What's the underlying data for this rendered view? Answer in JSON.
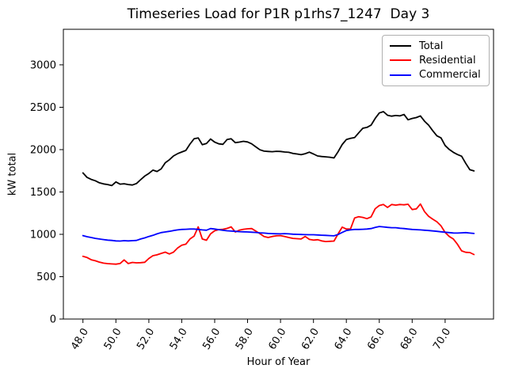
{
  "figure": {
    "background": "#ffffff",
    "frame_color": "#000000"
  },
  "chart_data": {
    "type": "line",
    "title": "Timeseries Load for P1R p1rhs7_1247  Day 3",
    "xlabel": "Hour of Year",
    "ylabel": "kW total",
    "grid": false,
    "legend_position": "upper right",
    "xlim": [
      46.81,
      72.94
    ],
    "ylim": [
      0,
      3420
    ],
    "xticks": [
      48,
      50,
      52,
      54,
      56,
      58,
      60,
      62,
      64,
      66,
      68,
      70
    ],
    "xtick_labels": [
      "48.0",
      "50.0",
      "52.0",
      "54.0",
      "56.0",
      "58.0",
      "60.0",
      "62.0",
      "64.0",
      "66.0",
      "68.0",
      "70.0"
    ],
    "xtick_rotation_deg": 58,
    "yticks": [
      0,
      500,
      1000,
      1500,
      2000,
      2500,
      3000
    ],
    "ytick_labels": [
      "0",
      "500",
      "1000",
      "1500",
      "2000",
      "2500",
      "3000"
    ],
    "x": [
      48.0,
      48.25,
      48.5,
      48.75,
      49.0,
      49.25,
      49.5,
      49.75,
      50.0,
      50.25,
      50.5,
      50.75,
      51.0,
      51.25,
      51.5,
      51.75,
      52.0,
      52.25,
      52.5,
      52.75,
      53.0,
      53.25,
      53.5,
      53.75,
      54.0,
      54.25,
      54.5,
      54.75,
      55.0,
      55.25,
      55.5,
      55.75,
      56.0,
      56.25,
      56.5,
      56.75,
      57.0,
      57.25,
      57.5,
      57.75,
      58.0,
      58.25,
      58.5,
      58.75,
      59.0,
      59.25,
      59.5,
      59.75,
      60.0,
      60.25,
      60.5,
      60.75,
      61.0,
      61.25,
      61.5,
      61.75,
      62.0,
      62.25,
      62.5,
      62.75,
      63.0,
      63.25,
      63.5,
      63.75,
      64.0,
      64.25,
      64.5,
      64.75,
      65.0,
      65.25,
      65.5,
      65.75,
      66.0,
      66.25,
      66.5,
      66.75,
      67.0,
      67.25,
      67.5,
      67.75,
      68.0,
      68.25,
      68.5,
      68.75,
      69.0,
      69.25,
      69.5,
      69.75,
      70.0,
      70.25,
      70.5,
      70.75,
      71.0,
      71.25,
      71.5,
      71.75
    ],
    "series": [
      {
        "name": "Total",
        "color": "#000000",
        "values": [
          1725,
          1672,
          1648,
          1632,
          1608,
          1595,
          1588,
          1575,
          1618,
          1592,
          1597,
          1588,
          1582,
          1600,
          1645,
          1688,
          1718,
          1758,
          1742,
          1772,
          1845,
          1880,
          1925,
          1952,
          1972,
          1990,
          2065,
          2128,
          2138,
          2058,
          2072,
          2125,
          2088,
          2068,
          2062,
          2118,
          2128,
          2082,
          2088,
          2098,
          2090,
          2068,
          2032,
          1998,
          1982,
          1978,
          1975,
          1980,
          1978,
          1972,
          1968,
          1955,
          1948,
          1940,
          1952,
          1970,
          1948,
          1925,
          1918,
          1915,
          1910,
          1902,
          1975,
          2060,
          2118,
          2132,
          2142,
          2198,
          2252,
          2262,
          2288,
          2368,
          2432,
          2448,
          2405,
          2395,
          2402,
          2398,
          2415,
          2352,
          2368,
          2378,
          2398,
          2335,
          2288,
          2222,
          2162,
          2138,
          2048,
          2002,
          1968,
          1942,
          1922,
          1838,
          1762,
          1748
        ]
      },
      {
        "name": "Residential",
        "color": "#ff0000",
        "values": [
          740,
          726,
          700,
          688,
          672,
          660,
          654,
          650,
          648,
          655,
          698,
          655,
          668,
          663,
          665,
          670,
          715,
          748,
          758,
          775,
          790,
          768,
          790,
          838,
          872,
          884,
          945,
          978,
          1088,
          945,
          930,
          1005,
          1042,
          1056,
          1060,
          1070,
          1088,
          1028,
          1048,
          1060,
          1065,
          1068,
          1038,
          1008,
          975,
          962,
          975,
          982,
          985,
          975,
          962,
          952,
          948,
          945,
          975,
          940,
          932,
          936,
          922,
          915,
          918,
          920,
          1005,
          1085,
          1062,
          1062,
          1192,
          1208,
          1200,
          1185,
          1205,
          1302,
          1340,
          1352,
          1318,
          1352,
          1345,
          1352,
          1348,
          1355,
          1292,
          1300,
          1358,
          1268,
          1212,
          1178,
          1148,
          1100,
          1022,
          975,
          945,
          882,
          805,
          788,
          785,
          762
        ]
      },
      {
        "name": "Commercial",
        "color": "#0000ff",
        "values": [
          985,
          972,
          962,
          952,
          945,
          938,
          932,
          928,
          922,
          920,
          925,
          922,
          925,
          928,
          945,
          958,
          975,
          988,
          1005,
          1020,
          1028,
          1035,
          1045,
          1052,
          1058,
          1060,
          1062,
          1062,
          1058,
          1052,
          1048,
          1068,
          1062,
          1055,
          1048,
          1042,
          1038,
          1035,
          1032,
          1030,
          1028,
          1025,
          1022,
          1018,
          1015,
          1010,
          1008,
          1006,
          1005,
          1008,
          1005,
          1002,
          1000,
          998,
          996,
          995,
          995,
          992,
          990,
          988,
          985,
          982,
          998,
          1022,
          1045,
          1052,
          1058,
          1058,
          1060,
          1062,
          1068,
          1082,
          1092,
          1088,
          1082,
          1078,
          1078,
          1072,
          1068,
          1062,
          1058,
          1055,
          1052,
          1048,
          1045,
          1040,
          1035,
          1030,
          1025,
          1020,
          1016,
          1015,
          1018,
          1020,
          1015,
          1010
        ]
      }
    ]
  }
}
